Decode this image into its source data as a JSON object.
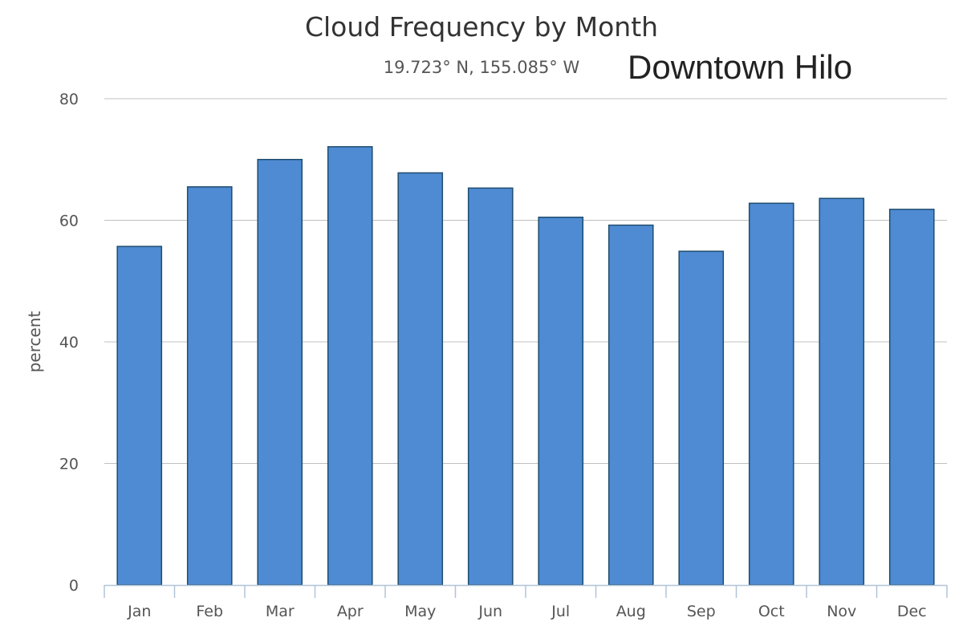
{
  "chart_data": {
    "type": "bar",
    "title": "Cloud Frequency by Month",
    "subtitle": "19.723° N, 155.085° W",
    "annotation": "Downtown Hilo",
    "xlabel": "",
    "ylabel": "percent",
    "ylim": [
      0,
      80
    ],
    "yticks": [
      0,
      20,
      40,
      60,
      80
    ],
    "categories": [
      "Jan",
      "Feb",
      "Mar",
      "Apr",
      "May",
      "Jun",
      "Jul",
      "Aug",
      "Sep",
      "Oct",
      "Nov",
      "Dec"
    ],
    "values": [
      55.7,
      65.5,
      70,
      72.1,
      67.8,
      65.3,
      60.5,
      59.2,
      54.9,
      62.8,
      63.6,
      61.8
    ],
    "grid": true,
    "legend": "none",
    "colors": {
      "bar": "#4f8bd3",
      "bar_border": "#1f4d6e",
      "grid": "#c0c0c0",
      "axis": "#b0c4d8"
    }
  }
}
